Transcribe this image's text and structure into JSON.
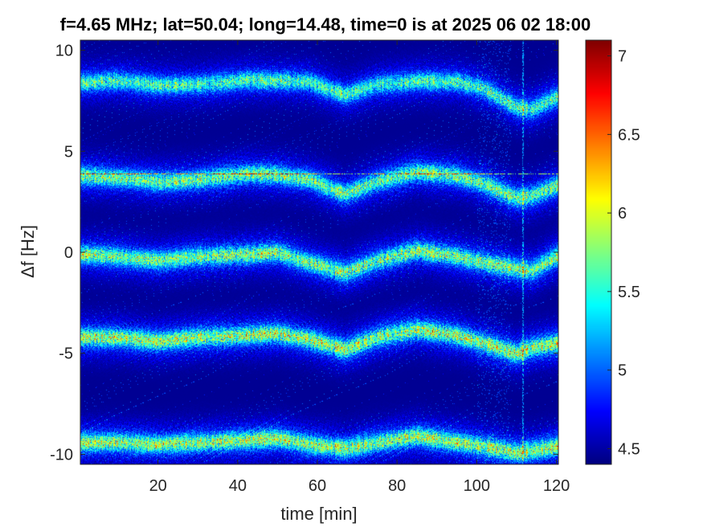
{
  "chart_data": {
    "type": "heatmap",
    "title": "f=4.65 MHz;  lat=50.04; long=14.48, time=0 is at 2025 06 02 18:00",
    "xlabel": "time [min]",
    "ylabel": "Δf [Hz]",
    "xlim": [
      0.5,
      120.5
    ],
    "ylim": [
      -10.5,
      10.5
    ],
    "xticks": [
      20,
      40,
      60,
      80,
      100,
      120
    ],
    "xtick_labels": [
      "20",
      "40",
      "60",
      "80",
      "100",
      "120"
    ],
    "yticks": [
      -10,
      -5,
      0,
      5,
      10
    ],
    "ytick_labels": [
      "-10",
      "-5",
      "0",
      "5",
      "10"
    ],
    "colorbar": {
      "range": [
        4.4,
        7.1
      ],
      "ticks": [
        4.5,
        5,
        5.5,
        6,
        6.5,
        7
      ],
      "tick_labels": [
        "4.5",
        "5",
        "5.5",
        "6",
        "6.5",
        "7"
      ],
      "colormap": "jet"
    },
    "background_value": 4.45,
    "grid": false,
    "traces": [
      {
        "offset_hz": 8.4,
        "peak_value": 6.3,
        "points": [
          [
            1,
            0
          ],
          [
            10,
            0.1
          ],
          [
            20,
            -0.1
          ],
          [
            30,
            -0.1
          ],
          [
            42,
            0.15
          ],
          [
            50,
            0.1
          ],
          [
            58,
            0.05
          ],
          [
            67,
            -0.6
          ],
          [
            75,
            -0.1
          ],
          [
            85,
            0.1
          ],
          [
            95,
            0.05
          ],
          [
            102,
            -0.3
          ],
          [
            110,
            -1.2
          ],
          [
            114,
            -1.3
          ],
          [
            120,
            -0.7
          ]
        ]
      },
      {
        "offset_hz": 3.8,
        "peak_value": 6.5,
        "points": [
          [
            1,
            0
          ],
          [
            10,
            -0.1
          ],
          [
            20,
            -0.3
          ],
          [
            30,
            -0.2
          ],
          [
            42,
            0.1
          ],
          [
            50,
            0.05
          ],
          [
            58,
            -0.2
          ],
          [
            67,
            -0.9
          ],
          [
            75,
            -0.3
          ],
          [
            85,
            0.2
          ],
          [
            95,
            0.0
          ],
          [
            102,
            -0.4
          ],
          [
            110,
            -1.1
          ],
          [
            114,
            -1.0
          ],
          [
            120,
            -0.5
          ]
        ]
      },
      {
        "offset_hz": -0.2,
        "peak_value": 6.6,
        "points": [
          [
            1,
            0.1
          ],
          [
            10,
            0.0
          ],
          [
            20,
            -0.2
          ],
          [
            30,
            0.0
          ],
          [
            42,
            0.1
          ],
          [
            50,
            0.2
          ],
          [
            58,
            -0.3
          ],
          [
            67,
            -0.8
          ],
          [
            75,
            -0.2
          ],
          [
            85,
            0.3
          ],
          [
            95,
            0.0
          ],
          [
            102,
            -0.3
          ],
          [
            110,
            -0.6
          ],
          [
            114,
            -0.7
          ],
          [
            120,
            0.0
          ]
        ]
      },
      {
        "offset_hz": -4.2,
        "peak_value": 6.8,
        "points": [
          [
            1,
            0.0
          ],
          [
            10,
            0.0
          ],
          [
            20,
            -0.2
          ],
          [
            30,
            0.0
          ],
          [
            42,
            0.1
          ],
          [
            50,
            0.2
          ],
          [
            58,
            -0.1
          ],
          [
            67,
            -0.6
          ],
          [
            75,
            0.0
          ],
          [
            85,
            0.4
          ],
          [
            95,
            0.1
          ],
          [
            102,
            -0.3
          ],
          [
            110,
            -0.8
          ],
          [
            114,
            -0.5
          ],
          [
            120,
            -0.3
          ]
        ]
      },
      {
        "offset_hz": -9.4,
        "peak_value": 6.8,
        "points": [
          [
            1,
            0.0
          ],
          [
            10,
            0.0
          ],
          [
            20,
            -0.1
          ],
          [
            30,
            0.0
          ],
          [
            42,
            0.1
          ],
          [
            50,
            0.2
          ],
          [
            58,
            -0.1
          ],
          [
            67,
            -0.3
          ],
          [
            75,
            0.0
          ],
          [
            85,
            0.3
          ],
          [
            95,
            0.0
          ],
          [
            102,
            -0.2
          ],
          [
            110,
            -0.5
          ],
          [
            114,
            -0.4
          ],
          [
            120,
            -0.2
          ]
        ]
      }
    ],
    "interference": {
      "horizontal_line_hz": 3.9,
      "vertical_line_min": 111.5
    }
  }
}
